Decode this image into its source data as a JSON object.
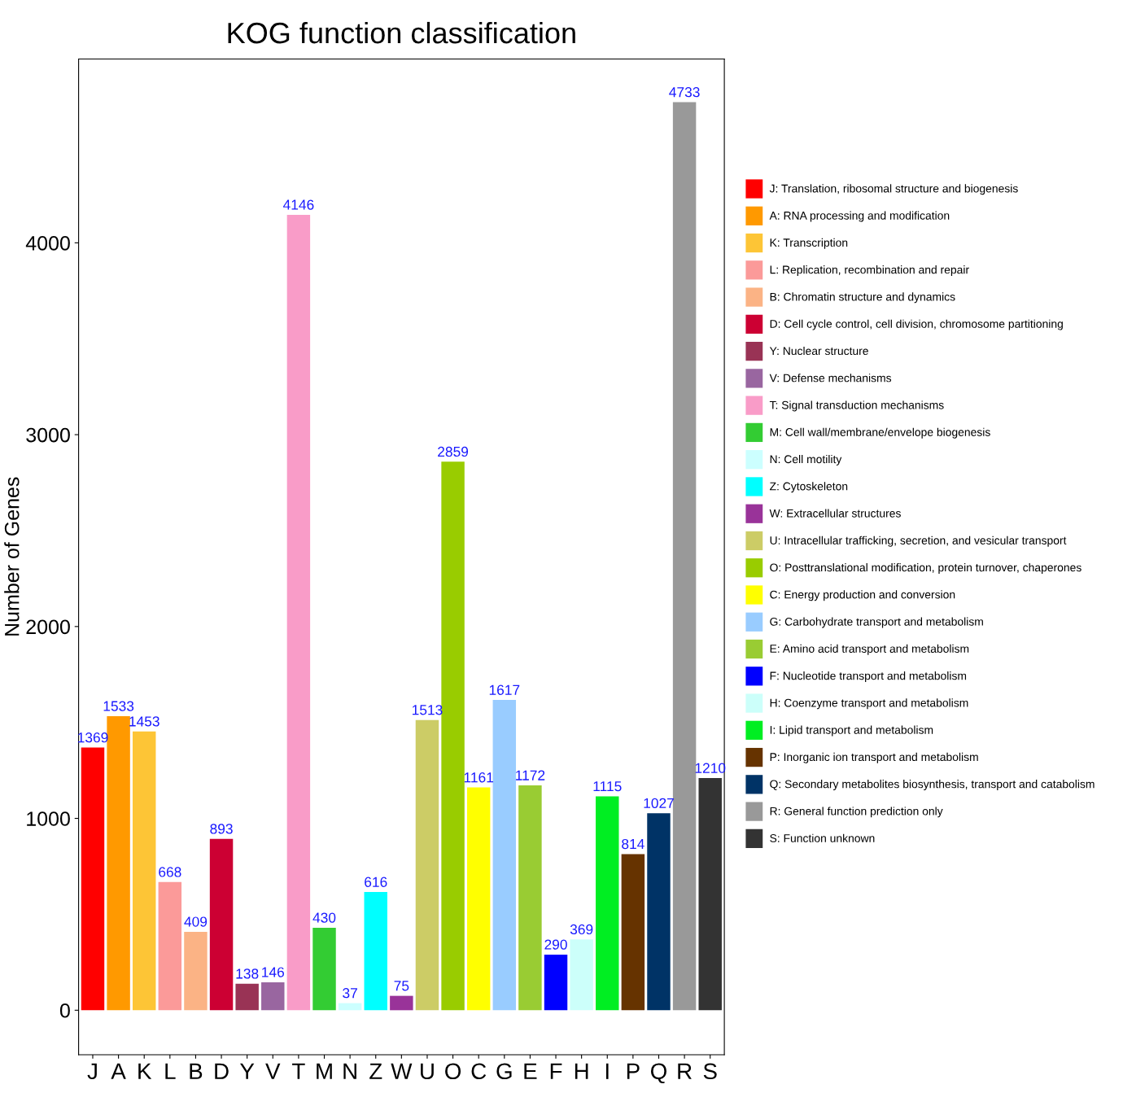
{
  "chart_data": {
    "type": "bar",
    "title": "KOG function classification",
    "ylabel": "Number of Genes",
    "categories": [
      "J",
      "A",
      "K",
      "L",
      "B",
      "D",
      "Y",
      "V",
      "T",
      "M",
      "N",
      "Z",
      "W",
      "U",
      "O",
      "C",
      "G",
      "E",
      "F",
      "H",
      "I",
      "P",
      "Q",
      "R",
      "S"
    ],
    "series": [
      {
        "name": "J: Translation, ribosomal structure and biogenesis",
        "color": "#ff0000",
        "values": [
          1369,
          null,
          null,
          null,
          null,
          null,
          null,
          null,
          null,
          null,
          null,
          null,
          null,
          null,
          null,
          null,
          null,
          null,
          null,
          null,
          null,
          null,
          null,
          null,
          null
        ]
      },
      {
        "name": "A: RNA processing and modification",
        "color": "#ff9900",
        "values": [
          null,
          1533,
          null,
          null,
          null,
          null,
          null,
          null,
          null,
          null,
          null,
          null,
          null,
          null,
          null,
          null,
          null,
          null,
          null,
          null,
          null,
          null,
          null,
          null,
          null
        ]
      },
      {
        "name": "K: Transcription",
        "color": "#fdc536",
        "values": [
          null,
          null,
          1453,
          null,
          null,
          null,
          null,
          null,
          null,
          null,
          null,
          null,
          null,
          null,
          null,
          null,
          null,
          null,
          null,
          null,
          null,
          null,
          null,
          null,
          null
        ]
      },
      {
        "name": "L: Replication, recombination and repair",
        "color": "#fb9a99",
        "values": [
          null,
          null,
          null,
          668,
          null,
          null,
          null,
          null,
          null,
          null,
          null,
          null,
          null,
          null,
          null,
          null,
          null,
          null,
          null,
          null,
          null,
          null,
          null,
          null,
          null
        ]
      },
      {
        "name": "B: Chromatin structure and dynamics",
        "color": "#fbb385",
        "values": [
          null,
          null,
          null,
          null,
          409,
          null,
          null,
          null,
          null,
          null,
          null,
          null,
          null,
          null,
          null,
          null,
          null,
          null,
          null,
          null,
          null,
          null,
          null,
          null,
          null
        ]
      },
      {
        "name": "D: Cell cycle control, cell division, chromosome partitioning",
        "color": "#cc0033",
        "values": [
          null,
          null,
          null,
          null,
          null,
          893,
          null,
          null,
          null,
          null,
          null,
          null,
          null,
          null,
          null,
          null,
          null,
          null,
          null,
          null,
          null,
          null,
          null,
          null,
          null
        ]
      },
      {
        "name": "Y: Nuclear structure",
        "color": "#993355",
        "values": [
          null,
          null,
          null,
          null,
          null,
          null,
          138,
          null,
          null,
          null,
          null,
          null,
          null,
          null,
          null,
          null,
          null,
          null,
          null,
          null,
          null,
          null,
          null,
          null,
          null
        ]
      },
      {
        "name": "V: Defense mechanisms",
        "color": "#9966a0",
        "values": [
          null,
          null,
          null,
          null,
          null,
          null,
          null,
          146,
          null,
          null,
          null,
          null,
          null,
          null,
          null,
          null,
          null,
          null,
          null,
          null,
          null,
          null,
          null,
          null,
          null
        ]
      },
      {
        "name": "T: Signal transduction mechanisms",
        "color": "#f99cc8",
        "values": [
          null,
          null,
          null,
          null,
          null,
          null,
          null,
          null,
          4146,
          null,
          null,
          null,
          null,
          null,
          null,
          null,
          null,
          null,
          null,
          null,
          null,
          null,
          null,
          null,
          null
        ]
      },
      {
        "name": "M: Cell wall/membrane/envelope biogenesis",
        "color": "#33cc33",
        "values": [
          null,
          null,
          null,
          null,
          null,
          null,
          null,
          null,
          null,
          430,
          null,
          null,
          null,
          null,
          null,
          null,
          null,
          null,
          null,
          null,
          null,
          null,
          null,
          null,
          null
        ]
      },
      {
        "name": "N: Cell motility",
        "color": "#ccffff",
        "values": [
          null,
          null,
          null,
          null,
          null,
          null,
          null,
          null,
          null,
          null,
          37,
          null,
          null,
          null,
          null,
          null,
          null,
          null,
          null,
          null,
          null,
          null,
          null,
          null,
          null
        ]
      },
      {
        "name": "Z: Cytoskeleton",
        "color": "#00ffff",
        "values": [
          null,
          null,
          null,
          null,
          null,
          null,
          null,
          null,
          null,
          null,
          null,
          616,
          null,
          null,
          null,
          null,
          null,
          null,
          null,
          null,
          null,
          null,
          null,
          null,
          null
        ]
      },
      {
        "name": "W: Extracellular structures",
        "color": "#993399",
        "values": [
          null,
          null,
          null,
          null,
          null,
          null,
          null,
          null,
          null,
          null,
          null,
          null,
          75,
          null,
          null,
          null,
          null,
          null,
          null,
          null,
          null,
          null,
          null,
          null,
          null
        ]
      },
      {
        "name": "U: Intracellular trafficking, secretion, and vesicular transport",
        "color": "#cccc66",
        "values": [
          null,
          null,
          null,
          null,
          null,
          null,
          null,
          null,
          null,
          null,
          null,
          null,
          null,
          1513,
          null,
          null,
          null,
          null,
          null,
          null,
          null,
          null,
          null,
          null,
          null
        ]
      },
      {
        "name": "O: Posttranslational modification, protein turnover, chaperones",
        "color": "#99cc00",
        "values": [
          null,
          null,
          null,
          null,
          null,
          null,
          null,
          null,
          null,
          null,
          null,
          null,
          null,
          null,
          2859,
          null,
          null,
          null,
          null,
          null,
          null,
          null,
          null,
          null,
          null
        ]
      },
      {
        "name": "C: Energy production and conversion",
        "color": "#ffff00",
        "values": [
          null,
          null,
          null,
          null,
          null,
          null,
          null,
          null,
          null,
          null,
          null,
          null,
          null,
          null,
          null,
          1161,
          null,
          null,
          null,
          null,
          null,
          null,
          null,
          null,
          null
        ]
      },
      {
        "name": "G: Carbohydrate transport and metabolism",
        "color": "#99ccff",
        "values": [
          null,
          null,
          null,
          null,
          null,
          null,
          null,
          null,
          null,
          null,
          null,
          null,
          null,
          null,
          null,
          null,
          1617,
          null,
          null,
          null,
          null,
          null,
          null,
          null,
          null
        ]
      },
      {
        "name": "E: Amino acid transport and metabolism",
        "color": "#99cc33",
        "values": [
          null,
          null,
          null,
          null,
          null,
          null,
          null,
          null,
          null,
          null,
          null,
          null,
          null,
          null,
          null,
          null,
          null,
          1172,
          null,
          null,
          null,
          null,
          null,
          null,
          null
        ]
      },
      {
        "name": "F: Nucleotide transport and metabolism",
        "color": "#0000ff",
        "values": [
          null,
          null,
          null,
          null,
          null,
          null,
          null,
          null,
          null,
          null,
          null,
          null,
          null,
          null,
          null,
          null,
          null,
          null,
          290,
          null,
          null,
          null,
          null,
          null,
          null
        ]
      },
      {
        "name": "H: Coenzyme transport and metabolism",
        "color": "#ccfffa",
        "values": [
          null,
          null,
          null,
          null,
          null,
          null,
          null,
          null,
          null,
          null,
          null,
          null,
          null,
          null,
          null,
          null,
          null,
          null,
          null,
          369,
          null,
          null,
          null,
          null,
          null
        ]
      },
      {
        "name": "I: Lipid transport and metabolism",
        "color": "#00ee22",
        "values": [
          null,
          null,
          null,
          null,
          null,
          null,
          null,
          null,
          null,
          null,
          null,
          null,
          null,
          null,
          null,
          null,
          null,
          null,
          null,
          null,
          1115,
          null,
          null,
          null,
          null
        ]
      },
      {
        "name": "P: Inorganic ion transport and metabolism",
        "color": "#663300",
        "values": [
          null,
          null,
          null,
          null,
          null,
          null,
          null,
          null,
          null,
          null,
          null,
          null,
          null,
          null,
          null,
          null,
          null,
          null,
          null,
          null,
          null,
          814,
          null,
          null,
          null
        ]
      },
      {
        "name": "Q: Secondary metabolites biosynthesis, transport and catabolism",
        "color": "#003366",
        "values": [
          null,
          null,
          null,
          null,
          null,
          null,
          null,
          null,
          null,
          null,
          null,
          null,
          null,
          null,
          null,
          null,
          null,
          null,
          null,
          null,
          null,
          null,
          1027,
          null,
          null
        ]
      },
      {
        "name": "R: General function prediction only",
        "color": "#999999",
        "values": [
          null,
          null,
          null,
          null,
          null,
          null,
          null,
          null,
          null,
          null,
          null,
          null,
          null,
          null,
          null,
          null,
          null,
          null,
          null,
          null,
          null,
          null,
          null,
          4733,
          null
        ]
      },
      {
        "name": "S: Function unknown",
        "color": "#333333",
        "values": [
          null,
          null,
          null,
          null,
          null,
          null,
          null,
          null,
          null,
          null,
          null,
          null,
          null,
          null,
          null,
          null,
          null,
          null,
          null,
          null,
          null,
          null,
          null,
          null,
          1210
        ]
      }
    ],
    "ylim": [
      -232,
      4958
    ],
    "yticks": [
      0,
      1000,
      2000,
      3000,
      4000
    ],
    "grid": false,
    "legend": "right",
    "data_labels": true
  }
}
